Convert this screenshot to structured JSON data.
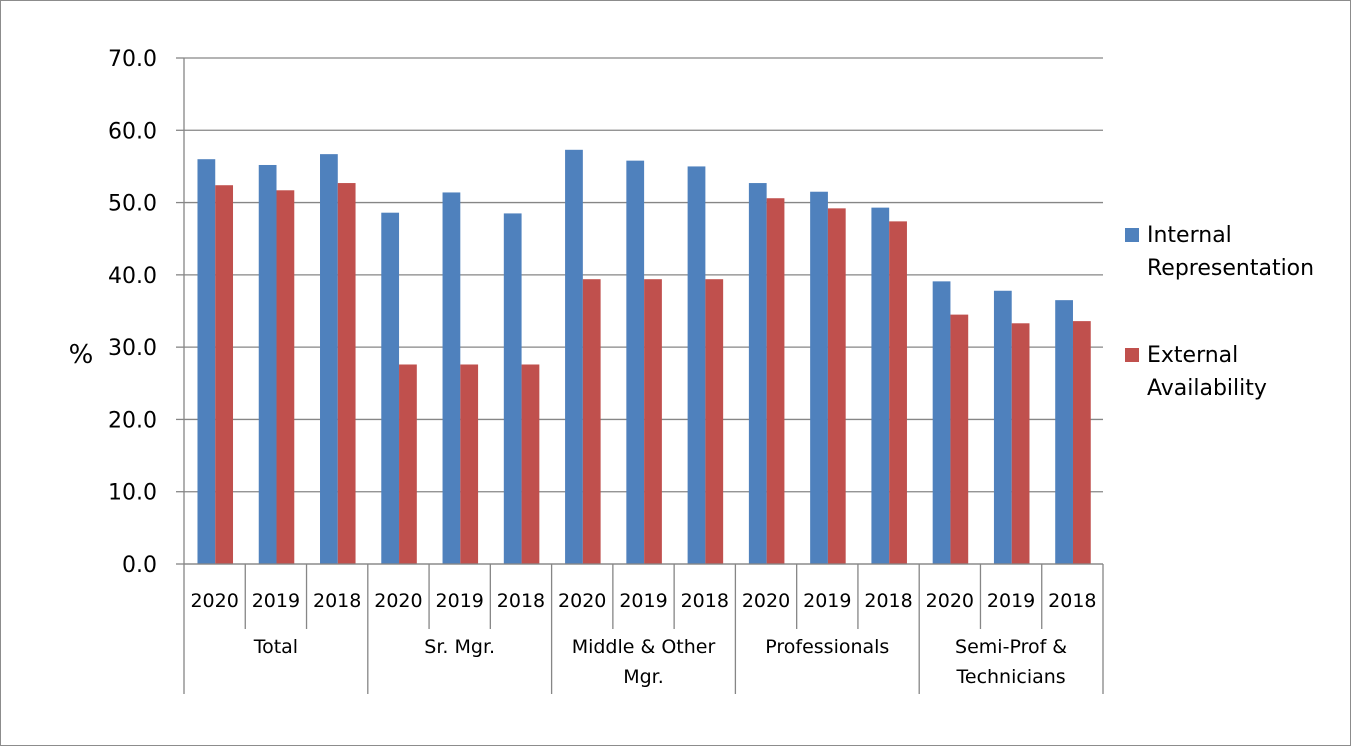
{
  "chart_data": {
    "type": "bar",
    "ylabel": "%",
    "xlabel": "",
    "title": "",
    "ylim": [
      0,
      70
    ],
    "yticks": [
      0,
      10,
      20,
      30,
      40,
      50,
      60,
      70
    ],
    "ytick_labels": [
      "0.0",
      "10.0",
      "20.0",
      "30.0",
      "40.0",
      "50.0",
      "60.0",
      "70.0"
    ],
    "grid": true,
    "legend_position": "right",
    "groups": [
      {
        "label": "Total",
        "categories": [
          "2020",
          "2019",
          "2018"
        ]
      },
      {
        "label": "Sr. Mgr.",
        "categories": [
          "2020",
          "2019",
          "2018"
        ]
      },
      {
        "label": "Middle & Other Mgr.",
        "label_lines": [
          "Middle & Other",
          "Mgr."
        ],
        "categories": [
          "2020",
          "2019",
          "2018"
        ]
      },
      {
        "label": "Professionals",
        "categories": [
          "2020",
          "2019",
          "2018"
        ]
      },
      {
        "label": "Semi-Prof & Technicians",
        "label_lines": [
          "Semi-Prof &",
          "Technicians"
        ],
        "categories": [
          "2020",
          "2019",
          "2018"
        ]
      }
    ],
    "series": [
      {
        "name": "Internal Representation",
        "legend_lines": [
          "Internal",
          "Representation"
        ],
        "color": "#4f81bd",
        "values": [
          56.0,
          55.2,
          56.7,
          48.6,
          51.4,
          48.5,
          57.3,
          55.8,
          55.0,
          52.7,
          51.5,
          49.3,
          39.1,
          37.8,
          36.5
        ]
      },
      {
        "name": "External Availability",
        "legend_lines": [
          "External",
          "Availability"
        ],
        "color": "#c0504d",
        "values": [
          52.4,
          51.7,
          52.7,
          27.6,
          27.6,
          27.6,
          39.4,
          39.4,
          39.4,
          50.6,
          49.2,
          47.4,
          34.5,
          33.3,
          33.6
        ]
      }
    ]
  }
}
